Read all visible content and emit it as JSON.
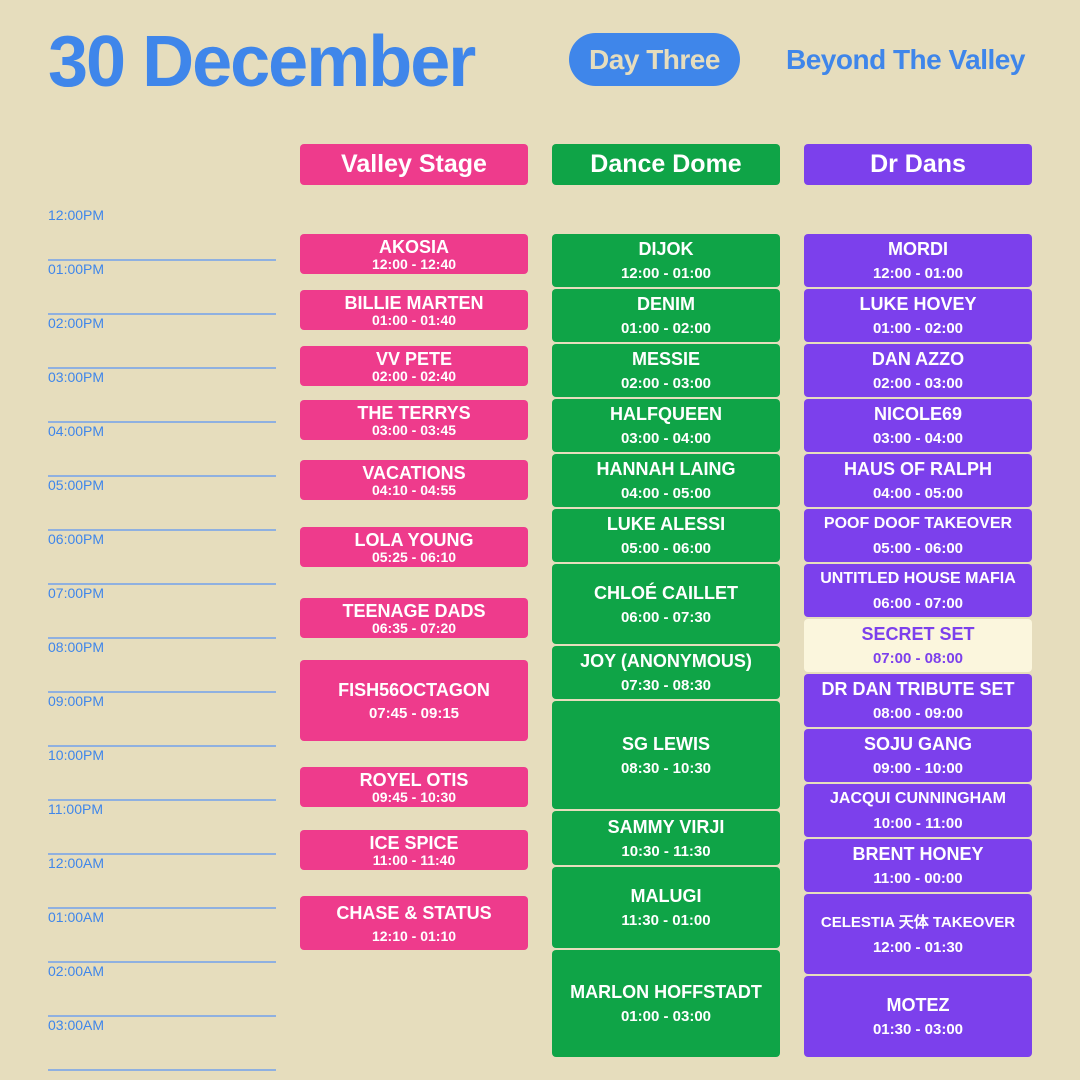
{
  "header": {
    "date": "30 December",
    "day": "Day Three",
    "brand": "Beyond The Valley"
  },
  "stages": {
    "valley": "Valley Stage",
    "dance": "Dance Dome",
    "drdans": "Dr Dans"
  },
  "colors": {
    "background": "#e6ddbd",
    "accent": "#3f86ea",
    "valley": "#ee3b8c",
    "dance": "#0fa447",
    "drdans": "#7c40ec",
    "secret": "#fbf6dd"
  },
  "times": [
    "12:00PM",
    "01:00PM",
    "02:00PM",
    "03:00PM",
    "04:00PM",
    "05:00PM",
    "06:00PM",
    "07:00PM",
    "08:00PM",
    "09:00PM",
    "10:00PM",
    "11:00PM",
    "12:00AM",
    "01:00AM",
    "02:00AM",
    "03:00AM"
  ],
  "valley": [
    {
      "artist": "AKOSIA",
      "time": "12:00 - 12:40"
    },
    {
      "artist": "BILLIE MARTEN",
      "time": "01:00 - 01:40"
    },
    {
      "artist": "VV PETE",
      "time": "02:00 - 02:40"
    },
    {
      "artist": "THE TERRYS",
      "time": "03:00 - 03:45"
    },
    {
      "artist": "VACATIONS",
      "time": "04:10 - 04:55"
    },
    {
      "artist": "LOLA YOUNG",
      "time": "05:25 - 06:10"
    },
    {
      "artist": "TEENAGE DADS",
      "time": "06:35 - 07:20"
    },
    {
      "artist": "FISH56OCTAGON",
      "time": "07:45 - 09:15"
    },
    {
      "artist": "ROYEL OTIS",
      "time": "09:45 - 10:30"
    },
    {
      "artist": "ICE SPICE",
      "time": "11:00 - 11:40"
    },
    {
      "artist": "CHASE & STATUS",
      "time": "12:10 - 01:10"
    }
  ],
  "dance": [
    {
      "artist": "DIJOK",
      "time": "12:00 - 01:00"
    },
    {
      "artist": "DENIM",
      "time": "01:00 - 02:00"
    },
    {
      "artist": "MESSIE",
      "time": "02:00 - 03:00"
    },
    {
      "artist": "HALFQUEEN",
      "time": "03:00 - 04:00"
    },
    {
      "artist": "HANNAH LAING",
      "time": "04:00 - 05:00"
    },
    {
      "artist": "LUKE ALESSI",
      "time": "05:00 - 06:00"
    },
    {
      "artist": "CHLOÉ CAILLET",
      "time": "06:00 - 07:30"
    },
    {
      "artist": "JOY (ANONYMOUS)",
      "time": "07:30 - 08:30"
    },
    {
      "artist": "SG LEWIS",
      "time": "08:30 - 10:30"
    },
    {
      "artist": "SAMMY VIRJI",
      "time": "10:30 - 11:30"
    },
    {
      "artist": "MALUGI",
      "time": "11:30 - 01:00"
    },
    {
      "artist": "MARLON HOFFSTADT",
      "time": "01:00 - 03:00"
    }
  ],
  "drdans": [
    {
      "artist": "MORDI",
      "time": "12:00 - 01:00"
    },
    {
      "artist": "LUKE HOVEY",
      "time": "01:00 - 02:00"
    },
    {
      "artist": "DAN AZZO",
      "time": "02:00 - 03:00"
    },
    {
      "artist": "NICOLE69",
      "time": "03:00 - 04:00"
    },
    {
      "artist": "HAUS OF RALPH",
      "time": "04:00 - 05:00"
    },
    {
      "artist": "POOF DOOF TAKEOVER",
      "time": "05:00 - 06:00"
    },
    {
      "artist": "UNTITLED HOUSE MAFIA",
      "time": "06:00 - 07:00"
    },
    {
      "artist": "SECRET SET",
      "time": "07:00 - 08:00"
    },
    {
      "artist": "DR DAN TRIBUTE SET",
      "time": "08:00 - 09:00"
    },
    {
      "artist": "SOJU GANG",
      "time": "09:00 - 10:00"
    },
    {
      "artist": "JACQUI CUNNINGHAM",
      "time": "10:00 - 11:00"
    },
    {
      "artist": "BRENT HONEY",
      "time": "11:00 - 00:00"
    },
    {
      "artist": "CELESTIA 天体 TAKEOVER",
      "time": "12:00 - 01:30"
    },
    {
      "artist": "MOTEZ",
      "time": "01:30 - 03:00"
    }
  ]
}
